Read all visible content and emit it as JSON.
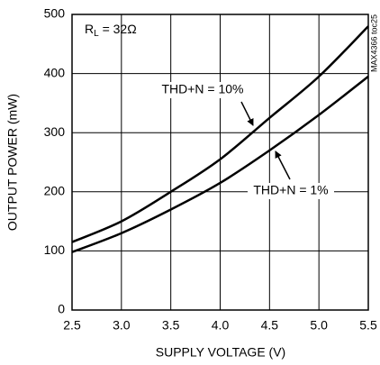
{
  "chart_data": {
    "type": "line",
    "x_label": "SUPPLY VOLTAGE (V)",
    "y_label": "OUTPUT POWER (mW)",
    "annotation_rl": [
      "R",
      "L",
      " = 32Ω"
    ],
    "part_id": "MAX4366 toc25",
    "x": [
      2.5,
      3.0,
      3.5,
      4.0,
      4.5,
      5.0,
      5.5
    ],
    "series": [
      {
        "name": "THD+N = 10%",
        "color": "#000000",
        "values": [
          115,
          150,
          200,
          255,
          325,
          395,
          480
        ]
      },
      {
        "name": "THD+N = 1%",
        "color": "#000000",
        "values": [
          98,
          130,
          170,
          215,
          270,
          330,
          395
        ]
      }
    ],
    "xlim": [
      2.5,
      5.5
    ],
    "xticks": [
      2.5,
      {
        "value": 3,
        "label": "3.0"
      },
      3.5,
      {
        "value": 4,
        "label": "4.0"
      },
      4.5,
      {
        "value": 5,
        "label": "5.0"
      },
      5.5
    ],
    "ylim": [
      0,
      500
    ],
    "yticks": [
      0,
      100,
      200,
      300,
      400,
      500
    ],
    "grid": true
  }
}
